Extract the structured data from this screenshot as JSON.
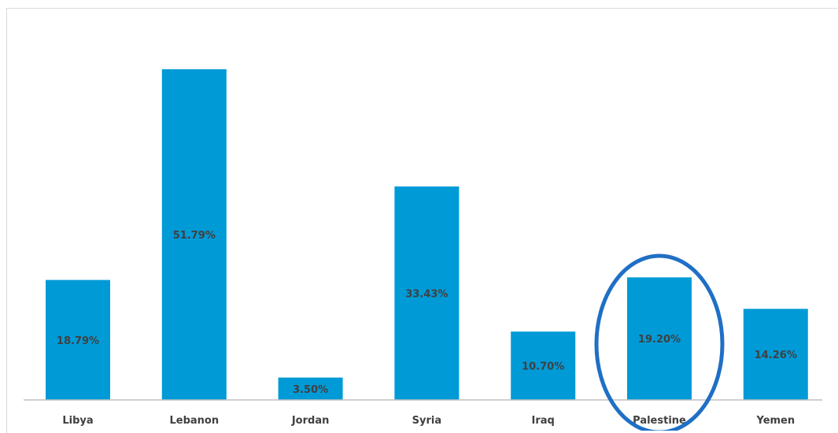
{
  "chart_data": {
    "type": "bar",
    "categories": [
      "Libya",
      "Lebanon",
      "Jordan",
      "Syria",
      "Iraq",
      "Palestine",
      "Yemen"
    ],
    "values": [
      18.79,
      51.79,
      3.5,
      33.43,
      10.7,
      19.2,
      14.26
    ],
    "data_labels": [
      "18.79%",
      "51.79%",
      "3.50%",
      "33.43%",
      "10.70%",
      "19.20%",
      "14.26%"
    ],
    "title": "",
    "xlabel": "",
    "ylabel": "",
    "ylim": [
      0,
      54
    ],
    "grid": false,
    "legend": "none",
    "highlighted_category": "Palestine",
    "colors": {
      "bar": "#009ad7",
      "highlight_ellipse": "#1f6fc5",
      "axis": "#bfbfbf",
      "text": "#404040"
    }
  }
}
